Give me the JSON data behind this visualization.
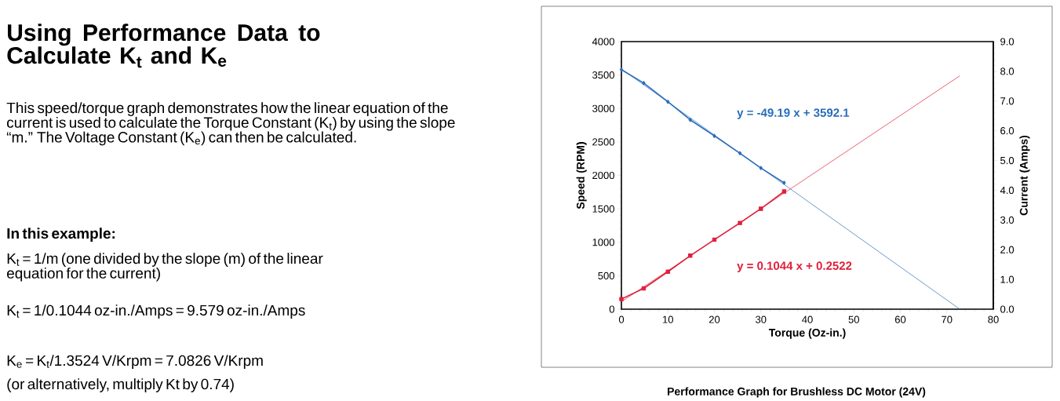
{
  "chart_data": {
    "type": "line",
    "title": "Using Performance Data to Calculate K$_{t}$ and K$_{e}$",
    "subtitle": "This speed/torque graph demonstrates how the linear equation of the current is used to calculate the Torque Constant (K$_{t}$) by using the slope “m.” The Voltage Constant (K$_{e}$) can then be calculated.",
    "xlabel": "Torque (Oz-in.)",
    "ylabel": "Speed (RPM)",
    "y2label": "Current (Amps)",
    "xlim": [
      0,
      80
    ],
    "xticks": [
      0,
      10,
      20,
      30,
      40,
      50,
      60,
      70,
      80
    ],
    "ylim": [
      0,
      4000
    ],
    "yticks": [
      0,
      500,
      1000,
      1500,
      2000,
      2500,
      3000,
      3500,
      4000
    ],
    "y2lim": [
      0,
      9
    ],
    "y2ticks": [
      {
        "value": 0,
        "label": "0.0"
      },
      {
        "value": 1,
        "label": "1.0"
      },
      {
        "value": 2,
        "label": "2.0"
      },
      {
        "value": 3,
        "label": "3.0"
      },
      {
        "value": 4,
        "label": "4.0"
      },
      {
        "value": 5,
        "label": "5.0"
      },
      {
        "value": 6,
        "label": "6.0"
      },
      {
        "value": 7,
        "label": "7.0"
      },
      {
        "value": 8,
        "label": "8.0"
      },
      {
        "value": 9,
        "label": "9.0"
      }
    ],
    "series": [
      {
        "color": "#2a6ebb",
        "marker": "diamond",
        "x": [
          0,
          4.8,
          10,
          14.8,
          20,
          25.5,
          30,
          35
        ],
        "values": [
          3580,
          3380,
          3100,
          2830,
          2590,
          2330,
          2110,
          1890
        ]
      },
      {
        "color": "#e0203c",
        "marker": "square",
        "axis": "y2",
        "x": [
          0,
          4.8,
          10,
          14.8,
          20,
          25.5,
          30,
          35
        ],
        "values": [
          0.34,
          0.7,
          1.26,
          1.8,
          2.34,
          2.9,
          3.38,
          3.96
        ]
      },
      {
        "color": "#2a6ebb",
        "marker": "none",
        "x": [
          0,
          72.8
        ],
        "values": [
          3590,
          0
        ]
      },
      {
        "color": "#e0203c",
        "marker": "none",
        "axis": "y2",
        "x": [
          0,
          72.8
        ],
        "values": [
          0.25,
          7.85
        ]
      }
    ],
    "annotations": [
      "y = -49.19  x + 3592.1",
      "y = 0.1044  x + 0.2522",
      "In this example:",
      "K$_{t}$ = 1/m (one divided by the slope (m) of the linear equation for the current)",
      "K$_{t}$ = 1/0.1044 oz-in./Amps = 9.579 oz-in./Amps",
      "K$_{e}$ = K$_{t}$/1.3524 V/Krpm = 7.0826 V/Krpm",
      "(or alternatively, multiply Kt by 0.74)",
      "Performance Graph for Brushless DC Motor (24V)"
    ]
  }
}
